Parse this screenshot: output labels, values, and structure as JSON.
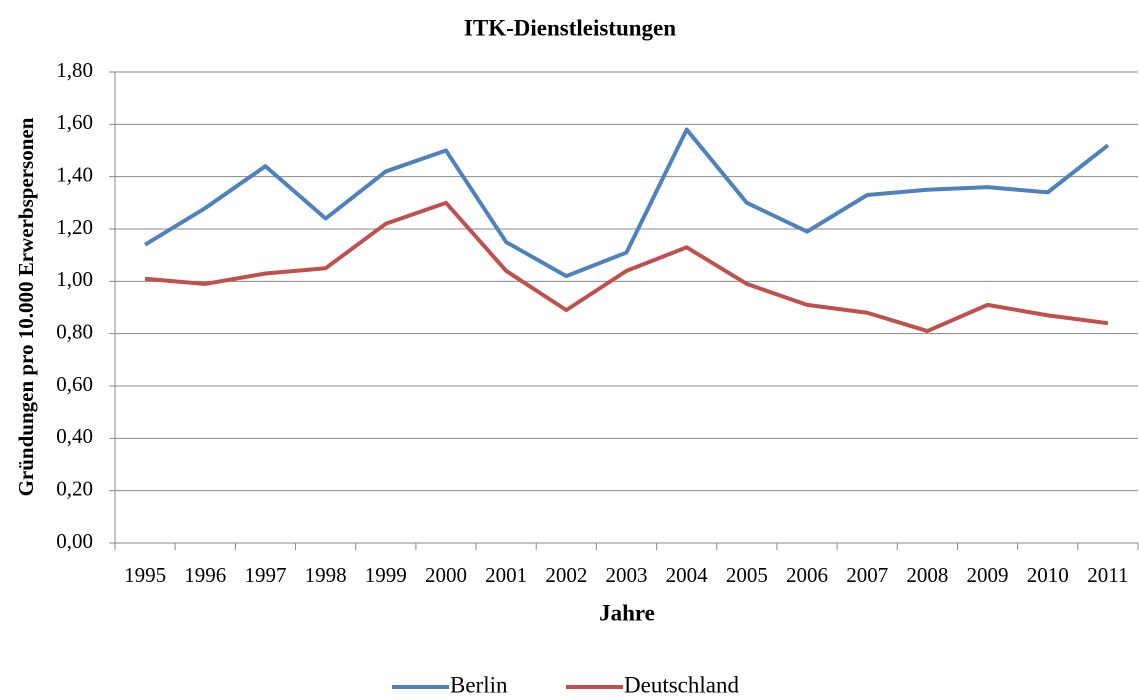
{
  "chart_data": {
    "type": "line",
    "title": "ITK-Dienstleistungen",
    "x_label": "Jahre",
    "y_label": "Gründungen pro 10.000 Erwerbspersonen",
    "categories": [
      "1995",
      "1996",
      "1997",
      "1998",
      "1999",
      "2000",
      "2001",
      "2002",
      "2003",
      "2004",
      "2005",
      "2006",
      "2007",
      "2008",
      "2009",
      "2010",
      "2011"
    ],
    "series": [
      {
        "name": "Berlin",
        "color": "#4f81bd",
        "values": [
          1.14,
          1.28,
          1.44,
          1.24,
          1.42,
          1.5,
          1.15,
          1.02,
          1.11,
          1.58,
          1.3,
          1.19,
          1.33,
          1.35,
          1.36,
          1.34,
          1.52
        ]
      },
      {
        "name": "Deutschland",
        "color": "#c0504d",
        "values": [
          1.01,
          0.99,
          1.03,
          1.05,
          1.22,
          1.3,
          1.04,
          0.89,
          1.04,
          1.13,
          0.99,
          0.91,
          0.88,
          0.81,
          0.91,
          0.87,
          0.84
        ]
      }
    ],
    "ylim": [
      0,
      1.8
    ],
    "yticks": [
      {
        "value": 0,
        "label": "0,00"
      },
      {
        "value": 0.2,
        "label": "0,20"
      },
      {
        "value": 0.4,
        "label": "0,40"
      },
      {
        "value": 0.6,
        "label": "0,60"
      },
      {
        "value": 0.8,
        "label": "0,80"
      },
      {
        "value": 1.0,
        "label": "1,00"
      },
      {
        "value": 1.2,
        "label": "1,20"
      },
      {
        "value": 1.4,
        "label": "1,40"
      },
      {
        "value": 1.6,
        "label": "1,60"
      },
      {
        "value": 1.8,
        "label": "1,80"
      }
    ],
    "grid": true,
    "legend": "bottom"
  }
}
